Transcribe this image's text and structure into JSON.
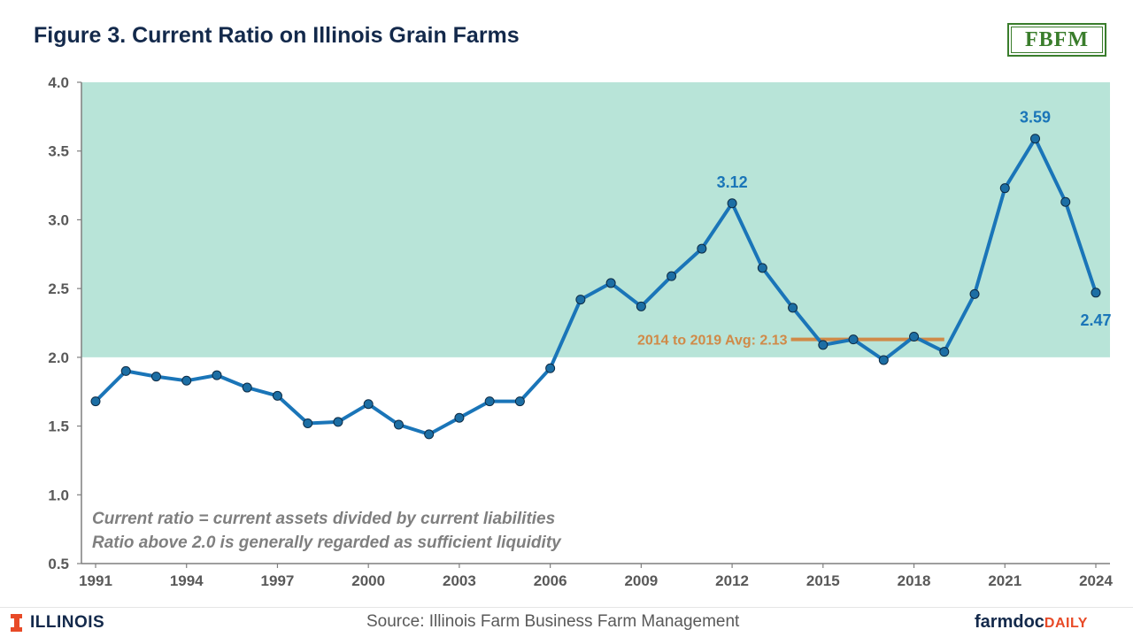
{
  "title": "Figure 3. Current Ratio on Illinois Grain Farms",
  "logo_text": "FBFM",
  "notes": [
    "Current ratio = current assets divided by current liabilities",
    "Ratio above 2.0 is generally regarded as sufficient liquidity"
  ],
  "source": "Source:  Illinois Farm Business Farm Management",
  "footer": {
    "university": "ILLINOIS",
    "brand_part1": "farmdoc",
    "brand_part2": "DAILY"
  },
  "colors": {
    "line": "#1a75b8",
    "marker": "#1c6ea4",
    "shaded_band": "#b8e4d8",
    "average_line": "#d08a48",
    "title": "#13294b"
  },
  "chart_data": {
    "type": "line",
    "title": "Figure 3. Current Ratio on Illinois Grain Farms",
    "xlabel": "",
    "ylabel": "",
    "ylim": [
      0.5,
      4.0
    ],
    "yticks": [
      0.5,
      1.0,
      1.5,
      2.0,
      2.5,
      3.0,
      3.5,
      4.0
    ],
    "xticks": [
      1991,
      1994,
      1997,
      2000,
      2003,
      2006,
      2009,
      2012,
      2015,
      2018,
      2021,
      2024
    ],
    "xlim": [
      1991,
      2024
    ],
    "grid": false,
    "shaded_region": {
      "y_from": 2.0,
      "y_to": 4.0
    },
    "series": [
      {
        "x": [
          1991,
          1992,
          1993,
          1994,
          1995,
          1996,
          1997,
          1998,
          1999,
          2000,
          2001,
          2002,
          2003,
          2004,
          2005,
          2006,
          2007,
          2008,
          2009,
          2010,
          2011,
          2012,
          2013,
          2014,
          2015,
          2016,
          2017,
          2018,
          2019,
          2020,
          2021,
          2022,
          2023,
          2024
        ],
        "values": [
          1.68,
          1.9,
          1.86,
          1.83,
          1.87,
          1.78,
          1.72,
          1.52,
          1.53,
          1.66,
          1.51,
          1.44,
          1.56,
          1.68,
          1.68,
          1.92,
          2.42,
          2.54,
          2.37,
          2.59,
          2.79,
          3.12,
          2.65,
          2.36,
          2.09,
          2.13,
          1.98,
          2.15,
          2.04,
          2.46,
          3.23,
          3.59,
          3.13,
          2.47
        ]
      }
    ],
    "reference_line": {
      "label": "2014 to 2019 Avg: 2.13",
      "value": 2.13,
      "x_from": 2014,
      "x_to": 2019
    },
    "annotations": [
      {
        "x": 2012,
        "y": 3.12,
        "text": "3.12"
      },
      {
        "x": 2022,
        "y": 3.59,
        "text": "3.59"
      },
      {
        "x": 2024,
        "y": 2.47,
        "text": "2.47"
      }
    ]
  }
}
